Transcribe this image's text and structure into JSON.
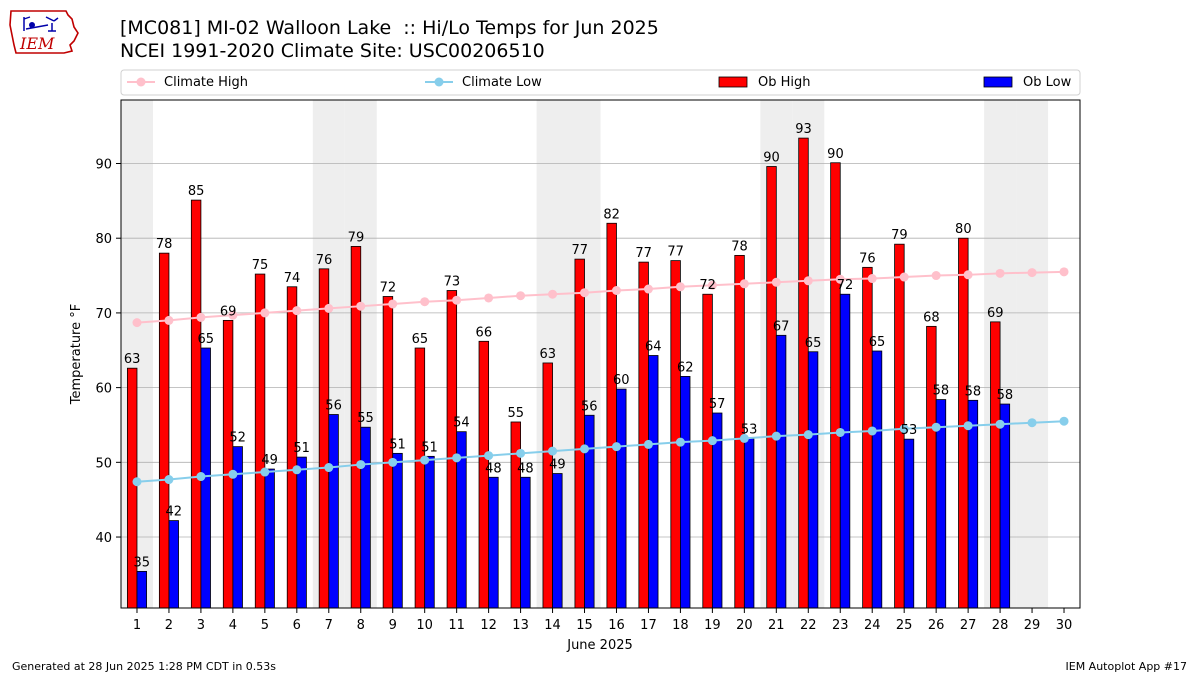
{
  "header": {
    "title_line1": "[MC081] MI-02 Walloon Lake  :: Hi/Lo Temps for Jun 2025",
    "title_line2": "NCEI 1991-2020 Climate Site: USC00206510",
    "logo_text": "IEM"
  },
  "footer": {
    "generated": "Generated at 28 Jun 2025 1:28 PM CDT in 0.53s",
    "app": "IEM Autoplot App #17"
  },
  "colors": {
    "ob_high": "#ff0000",
    "ob_low": "#0000ff",
    "climate_high": "#ffc0cb",
    "climate_low": "#87ceeb",
    "weekend_shade": "#eeeeee",
    "grid": "#b0b0b0",
    "logo": "#c00000"
  },
  "chart_data": {
    "type": "bar",
    "xlabel": "June 2025",
    "ylabel": "Temperature °F",
    "xlim": [
      0.5,
      30.5
    ],
    "ylim": [
      30.5,
      98.5
    ],
    "yticks": [
      40,
      50,
      60,
      70,
      80,
      90
    ],
    "grid": "horizontal",
    "legend_position": "top, above plot",
    "categories": [
      "1",
      "2",
      "3",
      "4",
      "5",
      "6",
      "7",
      "8",
      "9",
      "10",
      "11",
      "12",
      "13",
      "14",
      "15",
      "16",
      "17",
      "18",
      "19",
      "20",
      "21",
      "22",
      "23",
      "24",
      "25",
      "26",
      "27",
      "28",
      "29",
      "30"
    ],
    "shaded_days": [
      1,
      7,
      8,
      14,
      15,
      21,
      22,
      28,
      29
    ],
    "bar_series": [
      {
        "name": "Ob High",
        "color": "#ff0000",
        "values": [
          62.6,
          78,
          85.1,
          69,
          75.2,
          73.5,
          75.9,
          78.9,
          72.2,
          65.3,
          73,
          66.2,
          55.4,
          63.3,
          77.2,
          82,
          76.8,
          77,
          72.5,
          77.7,
          89.6,
          93.4,
          90.1,
          76.1,
          79.2,
          68.2,
          80,
          68.8
        ],
        "labels": [
          "63",
          "78",
          "85",
          "69",
          "75",
          "74",
          "76",
          "79",
          "72",
          "65",
          "73",
          "66",
          "55",
          "63",
          "77",
          "82",
          "77",
          "77",
          "72",
          "78",
          "90",
          "93",
          "90",
          "76",
          "79",
          "68",
          "80",
          "69"
        ]
      },
      {
        "name": "Ob Low",
        "color": "#0000ff",
        "values": [
          35.4,
          42.2,
          65.3,
          52.1,
          49.1,
          50.7,
          56.4,
          54.7,
          51.2,
          50.8,
          54.1,
          48,
          48,
          48.5,
          56.3,
          59.8,
          64.3,
          61.5,
          56.6,
          53.2,
          67,
          64.8,
          72.5,
          64.9,
          53.1,
          58.4,
          58.3,
          57.8
        ],
        "labels": [
          "35",
          "42",
          "65",
          "52",
          "49",
          "51",
          "56",
          "55",
          "51",
          "51",
          "54",
          "48",
          "48",
          "49",
          "56",
          "60",
          "64",
          "62",
          "57",
          "53",
          "67",
          "65",
          "72",
          "65",
          "53",
          "58",
          "58",
          "58"
        ]
      }
    ],
    "line_series": [
      {
        "name": "Climate High",
        "color": "#ffc0cb",
        "values": [
          68.7,
          69.0,
          69.4,
          69.7,
          70.0,
          70.3,
          70.6,
          70.9,
          71.2,
          71.5,
          71.7,
          72.0,
          72.3,
          72.5,
          72.7,
          73.0,
          73.2,
          73.5,
          73.7,
          73.9,
          74.1,
          74.3,
          74.5,
          74.6,
          74.8,
          75.0,
          75.1,
          75.3,
          75.4,
          75.5
        ]
      },
      {
        "name": "Climate Low",
        "color": "#87ceeb",
        "values": [
          47.4,
          47.7,
          48.1,
          48.4,
          48.7,
          49.0,
          49.3,
          49.7,
          50.0,
          50.3,
          50.6,
          50.9,
          51.2,
          51.5,
          51.8,
          52.1,
          52.4,
          52.7,
          52.9,
          53.2,
          53.5,
          53.7,
          54.0,
          54.2,
          54.5,
          54.7,
          54.9,
          55.1,
          55.3,
          55.5
        ]
      }
    ],
    "legend": [
      "Climate High",
      "Climate Low",
      "Ob High",
      "Ob Low"
    ]
  }
}
